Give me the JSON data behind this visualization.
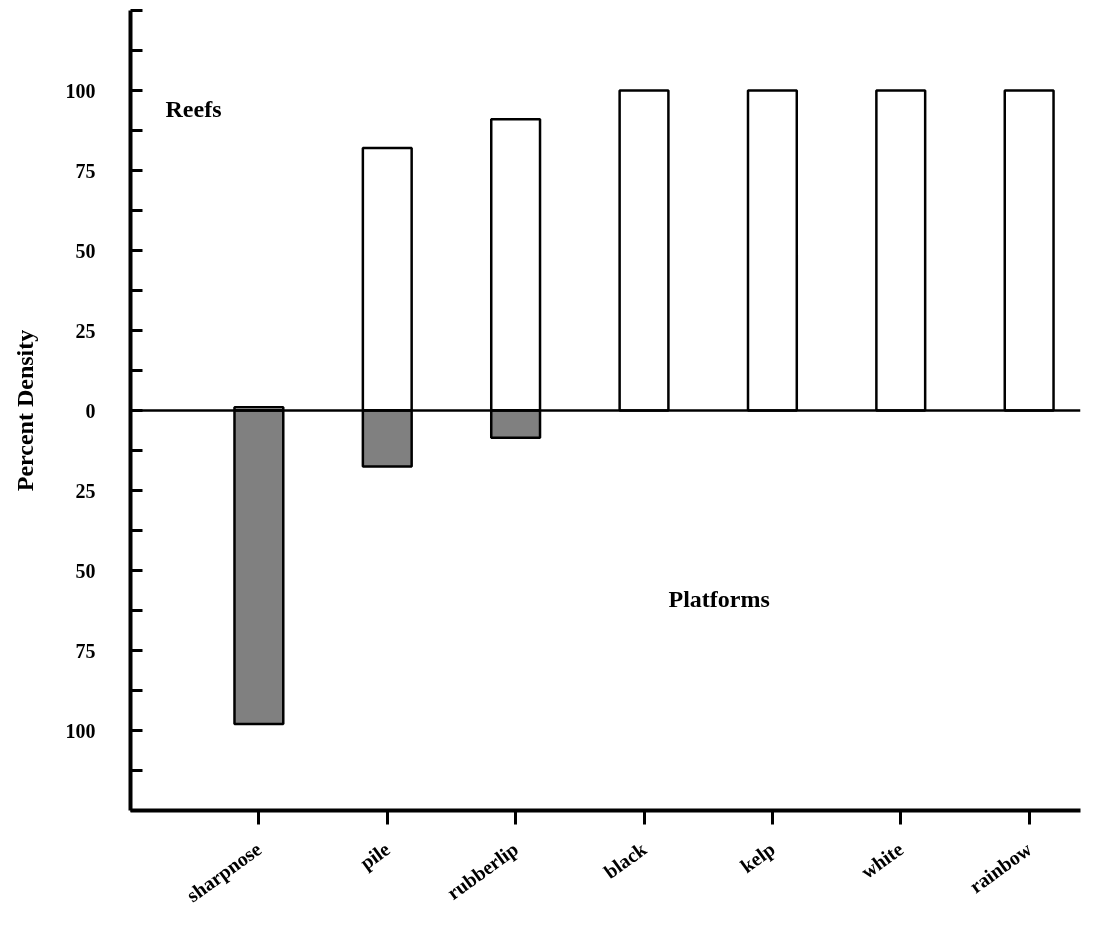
{
  "chart_data": {
    "type": "bar",
    "ylabel": "Percent Density",
    "categories": [
      "sharpnose",
      "pile",
      "rubberlip",
      "black",
      "kelp",
      "white",
      "rainbow"
    ],
    "series": [
      {
        "color": "#ffffff",
        "values": [
          1,
          82,
          91,
          100,
          100,
          100,
          100
        ]
      },
      {
        "color": "#808080",
        "values": [
          -98,
          -17.5,
          -8.5,
          null,
          null,
          null,
          null
        ]
      }
    ],
    "ylim": [
      -125,
      125
    ],
    "yticks": [
      {
        "value": -125,
        "label": null
      },
      {
        "value": -112.5,
        "label": null
      },
      {
        "value": -100,
        "label": "100"
      },
      {
        "value": -87.5,
        "label": null
      },
      {
        "value": -75,
        "label": "75"
      },
      {
        "value": -62.5,
        "label": null
      },
      {
        "value": -50,
        "label": "50"
      },
      {
        "value": -37.5,
        "label": null
      },
      {
        "value": -25,
        "label": "25"
      },
      {
        "value": -12.5,
        "label": null
      },
      0,
      {
        "value": 12.5,
        "label": null
      },
      25,
      {
        "value": 37.5,
        "label": null
      },
      50,
      {
        "value": 62.5,
        "label": null
      },
      75,
      {
        "value": 87.5,
        "label": null
      },
      100,
      {
        "value": 112.5,
        "label": null
      },
      {
        "value": 125,
        "label": null
      }
    ],
    "ref_lines": [
      {
        "axis": "y",
        "value": 0,
        "label": null,
        "color": "#000000"
      }
    ],
    "annotations": [
      "Reefs",
      "Platforms"
    ],
    "grid": false
  }
}
